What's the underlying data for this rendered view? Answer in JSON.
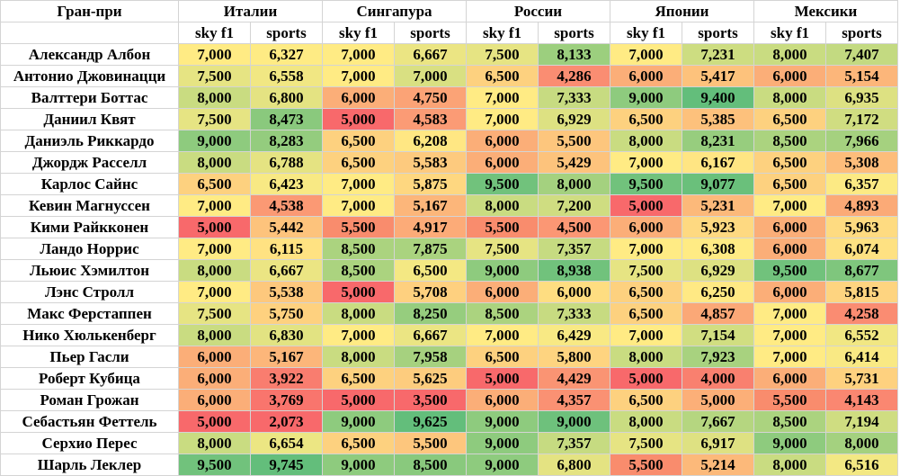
{
  "table": {
    "corner_label": "Гран-при",
    "grand_prix": [
      "Италии",
      "Сингапура",
      "России",
      "Японии",
      "Мексики"
    ],
    "sources": [
      "sky f1",
      "sports"
    ],
    "rows": [
      {
        "driver": "Александр Албон",
        "values": [
          "7,000",
          "6,327",
          "7,000",
          "6,667",
          "7,500",
          "8,133",
          "7,000",
          "7,231",
          "8,000",
          "7,407"
        ]
      },
      {
        "driver": "Антонио Джовинацци",
        "values": [
          "7,500",
          "6,558",
          "7,000",
          "7,000",
          "6,500",
          "4,286",
          "6,000",
          "5,417",
          "6,000",
          "5,154"
        ]
      },
      {
        "driver": "Валттери Боттас",
        "values": [
          "8,000",
          "6,800",
          "6,000",
          "4,750",
          "7,000",
          "7,333",
          "9,000",
          "9,400",
          "8,000",
          "6,935"
        ]
      },
      {
        "driver": "Даниил Квят",
        "values": [
          "7,500",
          "8,473",
          "5,000",
          "4,583",
          "7,000",
          "6,929",
          "6,500",
          "5,385",
          "6,500",
          "7,172"
        ]
      },
      {
        "driver": "Даниэль Риккардо",
        "values": [
          "9,000",
          "8,283",
          "6,500",
          "6,208",
          "6,000",
          "5,500",
          "8,000",
          "8,231",
          "8,500",
          "7,966"
        ]
      },
      {
        "driver": "Джордж Расселл",
        "values": [
          "8,000",
          "6,788",
          "6,500",
          "5,583",
          "6,000",
          "5,429",
          "7,000",
          "6,167",
          "6,500",
          "5,308"
        ]
      },
      {
        "driver": "Карлос Сайнс",
        "values": [
          "6,500",
          "6,423",
          "7,000",
          "5,875",
          "9,500",
          "8,000",
          "9,500",
          "9,077",
          "6,500",
          "6,357"
        ]
      },
      {
        "driver": "Кевин Магнуссен",
        "values": [
          "7,000",
          "4,538",
          "7,000",
          "5,167",
          "8,000",
          "7,200",
          "5,000",
          "5,231",
          "7,000",
          "4,893"
        ]
      },
      {
        "driver": "Кими Райкконен",
        "values": [
          "5,000",
          "5,442",
          "5,500",
          "4,917",
          "5,500",
          "4,500",
          "6,000",
          "5,923",
          "6,000",
          "5,963"
        ]
      },
      {
        "driver": "Ландо Норрис",
        "values": [
          "7,000",
          "6,115",
          "8,500",
          "7,875",
          "7,500",
          "7,357",
          "7,000",
          "6,308",
          "6,000",
          "6,074"
        ]
      },
      {
        "driver": "Льюис Хэмилтон",
        "values": [
          "8,000",
          "6,667",
          "8,500",
          "6,500",
          "9,000",
          "8,938",
          "7,500",
          "6,929",
          "9,500",
          "8,677"
        ]
      },
      {
        "driver": "Лэнс Стролл",
        "values": [
          "7,000",
          "5,538",
          "5,000",
          "5,708",
          "6,000",
          "6,000",
          "6,500",
          "6,250",
          "6,000",
          "5,815"
        ]
      },
      {
        "driver": "Макс Ферстаппен",
        "values": [
          "7,500",
          "5,750",
          "8,000",
          "8,250",
          "8,500",
          "7,333",
          "6,500",
          "4,857",
          "7,000",
          "4,258"
        ]
      },
      {
        "driver": "Нико Хюлькенберг",
        "values": [
          "8,000",
          "6,830",
          "7,000",
          "6,667",
          "7,000",
          "6,429",
          "7,000",
          "7,154",
          "7,000",
          "6,552"
        ]
      },
      {
        "driver": "Пьер Гасли",
        "values": [
          "6,000",
          "5,167",
          "8,000",
          "7,958",
          "6,500",
          "5,800",
          "8,000",
          "7,923",
          "7,000",
          "6,414"
        ]
      },
      {
        "driver": "Роберт Кубица",
        "values": [
          "6,000",
          "3,922",
          "6,500",
          "5,625",
          "5,000",
          "4,429",
          "5,000",
          "4,000",
          "6,000",
          "5,731"
        ]
      },
      {
        "driver": "Роман Грожан",
        "values": [
          "6,000",
          "3,769",
          "5,000",
          "3,500",
          "6,000",
          "4,357",
          "6,500",
          "5,000",
          "5,500",
          "4,143"
        ]
      },
      {
        "driver": "Себастьян Феттель",
        "values": [
          "5,000",
          "2,073",
          "9,000",
          "9,625",
          "9,000",
          "9,000",
          "8,000",
          "7,667",
          "8,500",
          "7,194"
        ]
      },
      {
        "driver": "Серхио Перес",
        "values": [
          "8,000",
          "6,654",
          "6,500",
          "5,500",
          "9,000",
          "7,357",
          "7,500",
          "6,917",
          "9,000",
          "8,000"
        ]
      },
      {
        "driver": "Шарль Леклер",
        "values": [
          "9,500",
          "9,745",
          "9,000",
          "8,500",
          "9,000",
          "6,800",
          "5,500",
          "5,214",
          "8,000",
          "6,516"
        ]
      }
    ]
  },
  "colors": {
    "sky_scale": {
      "5.0": "#f8696b",
      "5.5": "#f98c6d",
      "6.0": "#fbae78",
      "6.5": "#fdd17f",
      "7.0": "#ffeb84",
      "7.5": "#e6e483",
      "8.0": "#c9dc81",
      "8.5": "#abd37f",
      "9.0": "#8ecb7e",
      "9.5": "#71c27c"
    },
    "sports_low": "#f8696b",
    "sports_mid": "#ffeb84",
    "sports_high": "#63be7b"
  }
}
